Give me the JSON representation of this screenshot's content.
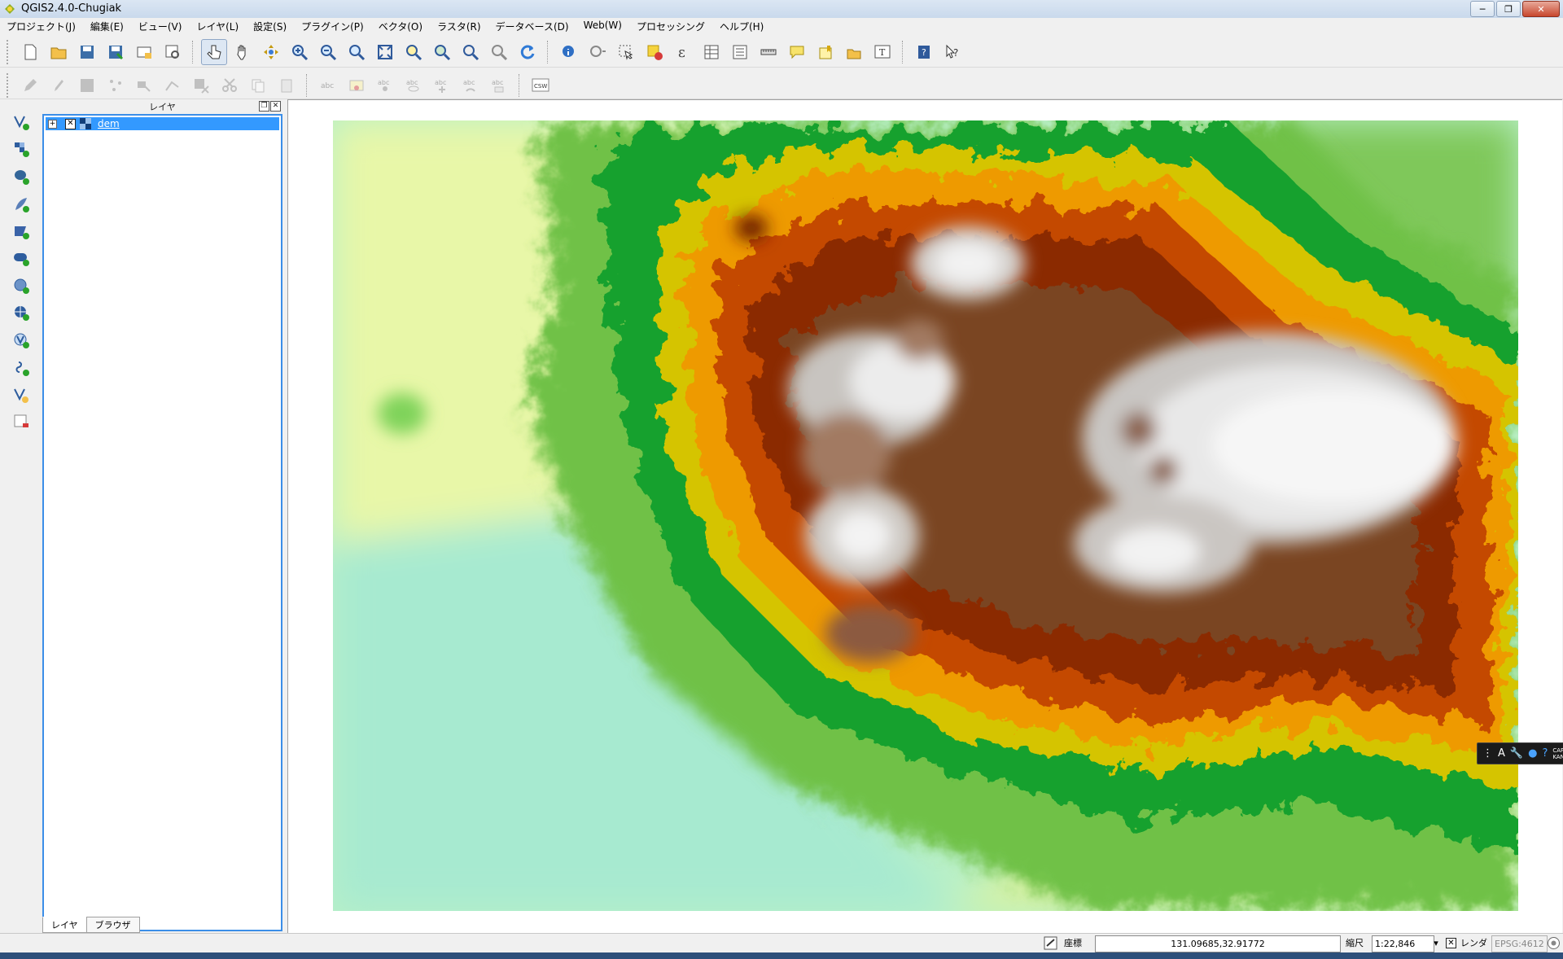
{
  "window": {
    "title": "QGIS2.4.0-Chugiak",
    "minimize": "─",
    "maximize": "❐",
    "close": "✕"
  },
  "menu": [
    "プロジェクト(J)",
    "編集(E)",
    "ビュー(V)",
    "レイヤ(L)",
    "設定(S)",
    "プラグイン(P)",
    "ベクタ(O)",
    "ラスタ(R)",
    "データベース(D)",
    "Web(W)",
    "プロセッシング",
    "ヘルプ(H)"
  ],
  "toolbar2": {
    "csw_label": "CSW"
  },
  "layers_panel": {
    "title": "レイヤ",
    "float_icon": "❐",
    "close_icon": "✕",
    "layers": [
      {
        "name": "dem",
        "visible": true,
        "type": "raster",
        "expander": "+",
        "check": "✕"
      }
    ],
    "tabs": [
      "レイヤ",
      "ブラウザ"
    ]
  },
  "ime_toolbar": {
    "caps": "CAPS",
    "kana": "KANA"
  },
  "status": {
    "coord_label": "座標",
    "coordinates": "131.09685,32.91772",
    "scale_label": "縮尺",
    "scale": "1:22,846",
    "render_label": "レンダ",
    "render_checked": true,
    "render_check": "✕",
    "crs": "EPSG:4612"
  },
  "colors": {
    "accent": "#3399ff",
    "map_low": "#a8e6c8",
    "map_mid": "#0f9a2a",
    "map_high": "#8b2500",
    "map_peak": "#f4f4f4"
  }
}
